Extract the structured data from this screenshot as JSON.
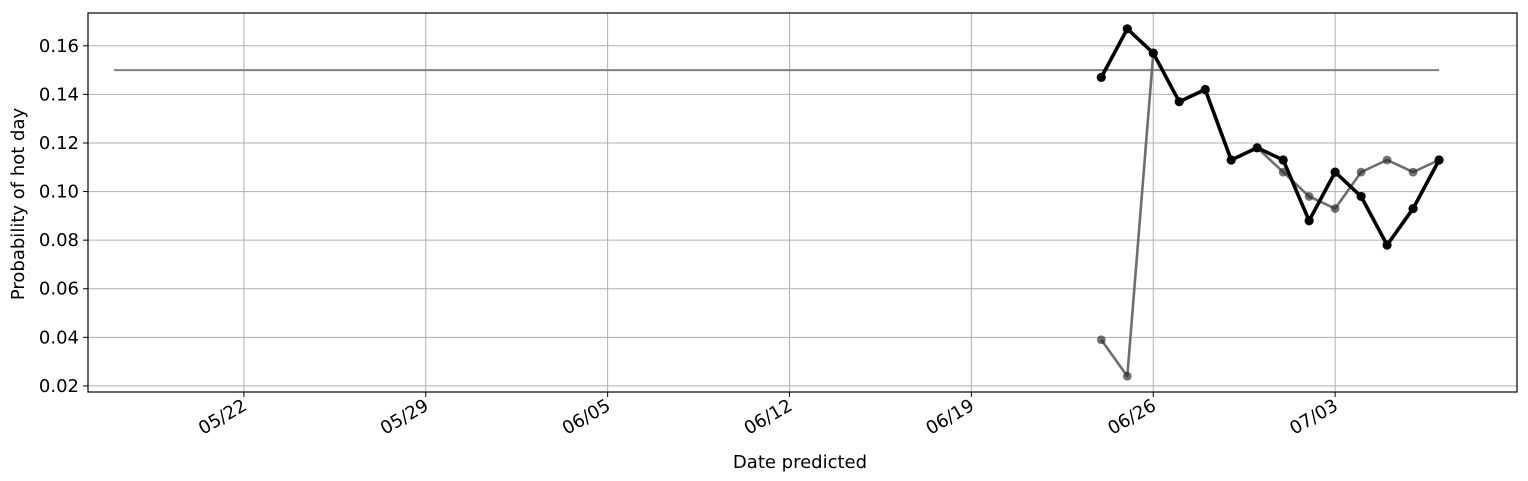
{
  "chart_data": {
    "type": "line",
    "title": "",
    "xlabel": "Date predicted",
    "ylabel": "Probability of hot day",
    "xlim": [
      "2020-05-16",
      "2020-07-10"
    ],
    "ylim": [
      0.0175,
      0.1735
    ],
    "grid": true,
    "legend": "none",
    "x_ticks": [
      {
        "date": "2020-05-22",
        "label": "05/22"
      },
      {
        "date": "2020-05-29",
        "label": "05/29"
      },
      {
        "date": "2020-06-05",
        "label": "06/05"
      },
      {
        "date": "2020-06-12",
        "label": "06/12"
      },
      {
        "date": "2020-06-19",
        "label": "06/19"
      },
      {
        "date": "2020-06-26",
        "label": "06/26"
      },
      {
        "date": "2020-07-03",
        "label": "07/03"
      }
    ],
    "y_ticks": [
      {
        "value": 0.02,
        "label": "0.02"
      },
      {
        "value": 0.04,
        "label": "0.04"
      },
      {
        "value": 0.06,
        "label": "0.06"
      },
      {
        "value": 0.08,
        "label": "0.08"
      },
      {
        "value": 0.1,
        "label": "0.10"
      },
      {
        "value": 0.12,
        "label": "0.12"
      },
      {
        "value": 0.14,
        "label": "0.14"
      },
      {
        "value": 0.16,
        "label": "0.16"
      }
    ],
    "series": [
      {
        "color": "#808080",
        "style": "line",
        "x": [
          "2020-05-17",
          "2020-07-07"
        ],
        "y": [
          0.15,
          0.15
        ]
      },
      {
        "color": "#6e6e6e",
        "style": "line-markers",
        "x": [
          "2020-06-24",
          "2020-06-25",
          "2020-06-26",
          "2020-06-27",
          "2020-06-28",
          "2020-06-29",
          "2020-06-30",
          "2020-07-01",
          "2020-07-02",
          "2020-07-03",
          "2020-07-04",
          "2020-07-05",
          "2020-07-06",
          "2020-07-07"
        ],
        "y": [
          0.039,
          0.024,
          0.157,
          0.137,
          0.142,
          0.113,
          0.118,
          0.108,
          0.098,
          0.093,
          0.108,
          0.113,
          0.108,
          0.113
        ]
      },
      {
        "color": "#000000",
        "style": "line-markers",
        "x": [
          "2020-06-24",
          "2020-06-25",
          "2020-06-26",
          "2020-06-27",
          "2020-06-28",
          "2020-06-29",
          "2020-06-30",
          "2020-07-01",
          "2020-07-02",
          "2020-07-03",
          "2020-07-04",
          "2020-07-05",
          "2020-07-06",
          "2020-07-07"
        ],
        "y": [
          0.147,
          0.167,
          0.157,
          0.137,
          0.142,
          0.113,
          0.118,
          0.113,
          0.088,
          0.108,
          0.098,
          0.078,
          0.093,
          0.113
        ]
      }
    ]
  }
}
